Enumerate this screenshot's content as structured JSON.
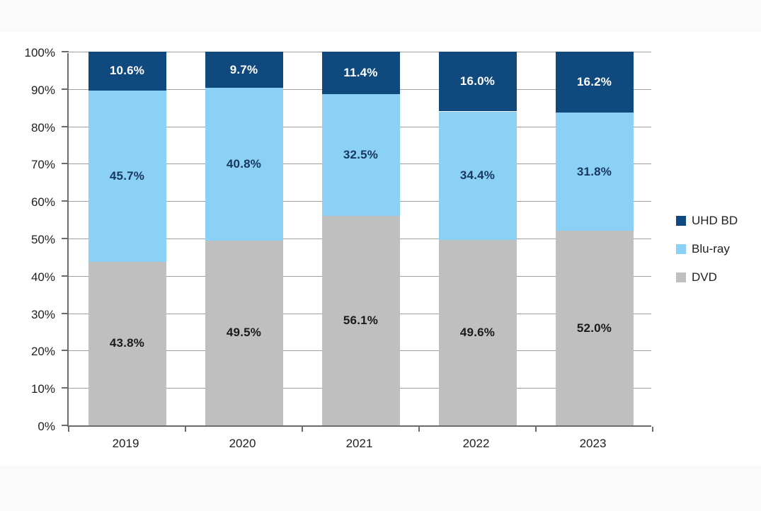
{
  "chart_data": {
    "type": "bar",
    "variant": "stacked-column",
    "title": "",
    "xlabel": "",
    "ylabel": "",
    "categories": [
      "2019",
      "2020",
      "2021",
      "2022",
      "2023"
    ],
    "series": [
      {
        "name": "DVD",
        "color": "#bfbfbf",
        "label_color": "#1a1a1a",
        "values": [
          43.8,
          49.5,
          56.1,
          49.6,
          52.0
        ]
      },
      {
        "name": "Blu-ray",
        "color": "#8bd1f6",
        "label_color": "#17375e",
        "values": [
          45.7,
          40.8,
          32.5,
          34.4,
          31.8
        ]
      },
      {
        "name": "UHD BD",
        "color": "#10497d",
        "label_color": "#ffffff",
        "values": [
          10.6,
          9.7,
          11.4,
          16.0,
          16.2
        ]
      }
    ],
    "value_suffix": "%",
    "value_decimals": 1,
    "y_ticks": [
      "0%",
      "10%",
      "20%",
      "30%",
      "40%",
      "50%",
      "60%",
      "70%",
      "80%",
      "90%",
      "100%"
    ],
    "ylim": [
      0,
      100
    ],
    "grid": true,
    "legend_position": "right",
    "legend_order_top_to_bottom": [
      "UHD BD",
      "Blu-ray",
      "DVD"
    ]
  }
}
